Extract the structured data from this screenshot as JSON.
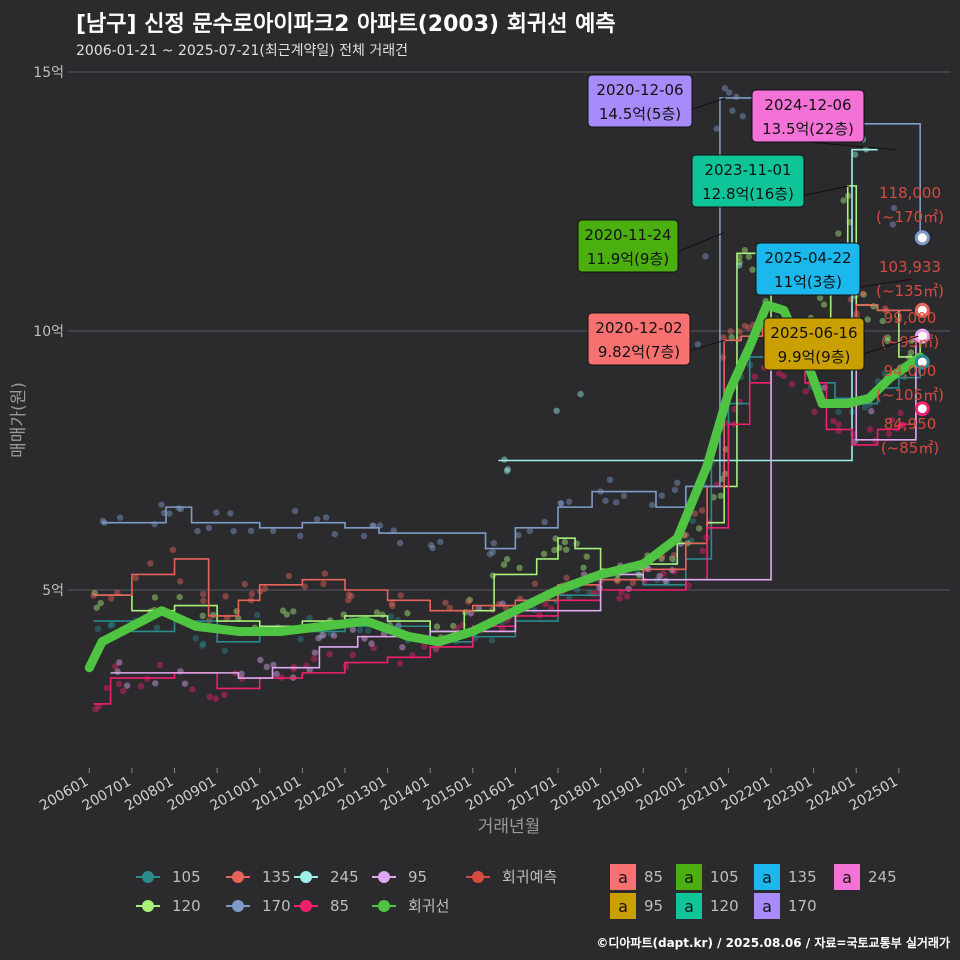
{
  "title": "[남구] 신정 문수로아이파크2 아파트(2003) 회귀선 예측",
  "subtitle": "2006-01-21 ~ 2025-07-21(최근계약일) 전체 거래건",
  "credit": "©디아파트(dapt.kr) / 2025.08.06 / 자료=국토교통부 실거래가",
  "colors": {
    "background": "#2b2b2e",
    "s105": "#2a8a8c",
    "s120": "#a8f07a",
    "s135": "#e8635a",
    "s170": "#7f9cc8",
    "s245": "#9ef0e8",
    "s85": "#f0206e",
    "s95": "#e0a8f0",
    "regression": "#4fc443",
    "forecast": "#d84a3f"
  },
  "chart_data": {
    "type": "line",
    "xlabel": "거래년월",
    "ylabel": "매매가(원)",
    "ylim": [
      0,
      15
    ],
    "y_ticks": [
      {
        "value": 5,
        "label": "5억"
      },
      {
        "value": 10,
        "label": "10억"
      },
      {
        "value": 15,
        "label": "15억"
      }
    ],
    "x_range": [
      2005.5,
      2026.2
    ],
    "x_ticks": [
      "200601",
      "200701",
      "200801",
      "200901",
      "201001",
      "201101",
      "201201",
      "201301",
      "201401",
      "201501",
      "201601",
      "201701",
      "201801",
      "201901",
      "202001",
      "202101",
      "202201",
      "202301",
      "202401",
      "202501"
    ],
    "series": [
      {
        "name": "105",
        "key": "s105",
        "points": [
          [
            2006.1,
            4.4
          ],
          [
            2007.0,
            4.2
          ],
          [
            2008.0,
            4.4
          ],
          [
            2009.0,
            4.0
          ],
          [
            2010.0,
            4.3
          ],
          [
            2011.0,
            4.2
          ],
          [
            2012.0,
            4.3
          ],
          [
            2013.0,
            4.3
          ],
          [
            2014.0,
            4.0
          ],
          [
            2015.0,
            4.1
          ],
          [
            2016.0,
            4.4
          ],
          [
            2017.0,
            4.9
          ],
          [
            2018.0,
            5.2
          ],
          [
            2019.0,
            5.1
          ],
          [
            2020.0,
            5.6
          ],
          [
            2020.6,
            7.5
          ],
          [
            2021.0,
            8.6
          ],
          [
            2021.5,
            9.5
          ],
          [
            2022.0,
            10.2
          ],
          [
            2022.6,
            9.6
          ],
          [
            2023.0,
            9.0
          ],
          [
            2023.5,
            8.7
          ],
          [
            2024.0,
            8.6
          ],
          [
            2024.5,
            8.9
          ],
          [
            2025.0,
            9.1
          ],
          [
            2025.5,
            9.4
          ]
        ]
      },
      {
        "name": "120",
        "key": "s120",
        "points": [
          [
            2006.1,
            4.9
          ],
          [
            2007.0,
            4.6
          ],
          [
            2008.0,
            4.7
          ],
          [
            2009.0,
            4.4
          ],
          [
            2010.0,
            4.3
          ],
          [
            2011.0,
            4.4
          ],
          [
            2012.0,
            4.5
          ],
          [
            2013.0,
            4.4
          ],
          [
            2014.0,
            4.2
          ],
          [
            2014.8,
            4.6
          ],
          [
            2015.5,
            5.3
          ],
          [
            2016.5,
            5.6
          ],
          [
            2017.0,
            6.0
          ],
          [
            2017.4,
            5.8
          ],
          [
            2018.0,
            5.4
          ],
          [
            2019.0,
            5.5
          ],
          [
            2019.8,
            5.9
          ],
          [
            2020.5,
            6.3
          ],
          [
            2020.9,
            7.0
          ],
          [
            2021.2,
            11.5
          ],
          [
            2021.4,
            11.5
          ],
          [
            2022.0,
            10.2
          ],
          [
            2022.6,
            9.8
          ],
          [
            2023.0,
            10.2
          ],
          [
            2023.4,
            10.8
          ],
          [
            2023.8,
            12.8
          ],
          [
            2024.0,
            10.5
          ],
          [
            2024.5,
            10.4
          ],
          [
            2025.0,
            9.5
          ],
          [
            2025.5,
            9.9
          ]
        ]
      },
      {
        "name": "135",
        "key": "s135",
        "points": [
          [
            2006.1,
            4.9
          ],
          [
            2007.0,
            5.3
          ],
          [
            2008.0,
            5.6
          ],
          [
            2008.8,
            4.5
          ],
          [
            2009.5,
            4.8
          ],
          [
            2010.0,
            5.1
          ],
          [
            2011.0,
            5.2
          ],
          [
            2012.0,
            5.0
          ],
          [
            2013.0,
            4.8
          ],
          [
            2014.0,
            4.6
          ],
          [
            2015.0,
            4.7
          ],
          [
            2016.0,
            4.8
          ],
          [
            2017.0,
            5.1
          ],
          [
            2018.0,
            5.2
          ],
          [
            2019.0,
            5.4
          ],
          [
            2020.0,
            5.9
          ],
          [
            2020.5,
            7.0
          ],
          [
            2020.9,
            9.82
          ],
          [
            2021.3,
            9.9
          ],
          [
            2021.8,
            10.2
          ],
          [
            2022.3,
            10.1
          ],
          [
            2023.0,
            9.4
          ],
          [
            2023.5,
            10.2
          ],
          [
            2024.0,
            10.5
          ],
          [
            2024.5,
            10.4
          ],
          [
            2025.3,
            10.4
          ]
        ]
      },
      {
        "name": "170",
        "key": "s170",
        "points": [
          [
            2006.3,
            6.3
          ],
          [
            2006.9,
            6.3
          ],
          [
            2007.8,
            6.6
          ],
          [
            2008.4,
            6.3
          ],
          [
            2009.0,
            6.3
          ],
          [
            2010.0,
            6.2
          ],
          [
            2011.0,
            6.3
          ],
          [
            2012.0,
            6.2
          ],
          [
            2012.8,
            6.1
          ],
          [
            2013.3,
            6.1
          ],
          [
            2015.3,
            5.8
          ],
          [
            2016.0,
            6.2
          ],
          [
            2017.0,
            6.6
          ],
          [
            2017.8,
            6.9
          ],
          [
            2018.3,
            6.9
          ],
          [
            2019.3,
            6.6
          ],
          [
            2020.0,
            7.0
          ],
          [
            2020.8,
            14.5
          ],
          [
            2021.1,
            14.5
          ],
          [
            2022.0,
            14.0
          ],
          [
            2022.3,
            14.0
          ],
          [
            2025.5,
            11.8
          ]
        ]
      },
      {
        "name": "245",
        "key": "s245",
        "points": [
          [
            2015.6,
            7.5
          ],
          [
            2015.9,
            7.5
          ],
          [
            2023.9,
            13.5
          ],
          [
            2024.5,
            13.5
          ]
        ]
      },
      {
        "name": "85",
        "key": "s85",
        "points": [
          [
            2006.1,
            2.8
          ],
          [
            2006.5,
            3.3
          ],
          [
            2007.0,
            3.3
          ],
          [
            2008.0,
            3.4
          ],
          [
            2009.0,
            3.1
          ],
          [
            2010.0,
            3.3
          ],
          [
            2011.0,
            3.4
          ],
          [
            2012.0,
            3.6
          ],
          [
            2013.0,
            3.7
          ],
          [
            2014.0,
            3.9
          ],
          [
            2015.0,
            4.3
          ],
          [
            2016.0,
            4.5
          ],
          [
            2017.0,
            4.8
          ],
          [
            2018.0,
            5.0
          ],
          [
            2019.0,
            5.0
          ],
          [
            2020.0,
            5.2
          ],
          [
            2020.5,
            6.2
          ],
          [
            2021.0,
            8.2
          ],
          [
            2021.5,
            9.0
          ],
          [
            2022.0,
            9.4
          ],
          [
            2022.8,
            9.0
          ],
          [
            2023.3,
            8.1
          ],
          [
            2023.9,
            7.8
          ],
          [
            2024.5,
            8.1
          ],
          [
            2025.0,
            8.2
          ],
          [
            2025.4,
            8.5
          ]
        ]
      },
      {
        "name": "95",
        "key": "s95",
        "points": [
          [
            2006.5,
            3.4
          ],
          [
            2006.9,
            3.4
          ],
          [
            2009.5,
            3.3
          ],
          [
            2010.3,
            3.5
          ],
          [
            2011.0,
            3.5
          ],
          [
            2011.4,
            3.9
          ],
          [
            2012.3,
            4.1
          ],
          [
            2013.0,
            4.1
          ],
          [
            2014.0,
            4.2
          ],
          [
            2016.0,
            4.6
          ],
          [
            2018.0,
            5.3
          ],
          [
            2019.0,
            5.2
          ],
          [
            2019.5,
            5.2
          ],
          [
            2022.0,
            9.7
          ],
          [
            2022.4,
            9.7
          ],
          [
            2024.0,
            7.9
          ],
          [
            2025.4,
            9.9
          ]
        ]
      }
    ],
    "regression": {
      "name": "회귀선",
      "points": [
        [
          2006.0,
          3.5
        ],
        [
          2006.3,
          4.0
        ],
        [
          2007.0,
          4.3
        ],
        [
          2007.7,
          4.6
        ],
        [
          2008.5,
          4.3
        ],
        [
          2009.5,
          4.2
        ],
        [
          2010.5,
          4.2
        ],
        [
          2011.5,
          4.3
        ],
        [
          2012.5,
          4.4
        ],
        [
          2013.5,
          4.1
        ],
        [
          2014.2,
          4.0
        ],
        [
          2015.0,
          4.2
        ],
        [
          2016.0,
          4.6
        ],
        [
          2017.0,
          5.0
        ],
        [
          2018.0,
          5.3
        ],
        [
          2019.0,
          5.5
        ],
        [
          2019.8,
          6.0
        ],
        [
          2020.5,
          7.4
        ],
        [
          2021.0,
          8.8
        ],
        [
          2021.5,
          9.7
        ],
        [
          2021.9,
          10.5
        ],
        [
          2022.3,
          10.4
        ],
        [
          2022.8,
          9.5
        ],
        [
          2023.2,
          8.6
        ],
        [
          2023.8,
          8.6
        ],
        [
          2024.3,
          8.7
        ],
        [
          2024.8,
          9.1
        ],
        [
          2025.5,
          9.5
        ]
      ]
    },
    "forecast": [
      {
        "area": "118,000",
        "area_range": "(~170㎡)",
        "value": 11.8,
        "key": "s170"
      },
      {
        "area": "103,933",
        "area_range": "(~135㎡)",
        "value": 10.4,
        "key": "s135"
      },
      {
        "area": "99,000",
        "area_range": "(~95㎡)",
        "value": 9.9,
        "key": "s95"
      },
      {
        "area": "94,000",
        "area_range": "(~105㎡)",
        "value": 9.4,
        "key": "s105"
      },
      {
        "area": "84,950",
        "area_range": "(~85㎡)",
        "value": 8.5,
        "key": "s85"
      }
    ],
    "annotations": [
      {
        "date": "2020-12-06",
        "label": "14.5억(5층)",
        "bg": "#a78bfa",
        "x": 2020.93,
        "y": 14.5
      },
      {
        "date": "2024-12-06",
        "label": "13.5억(22층)",
        "bg": "#f472d8",
        "x": 2024.93,
        "y": 13.5
      },
      {
        "date": "2023-11-01",
        "label": "12.8억(16층)",
        "bg": "#10c49a",
        "x": 2023.83,
        "y": 12.8
      },
      {
        "date": "2020-11-24",
        "label": "11.9억(9층)",
        "bg": "#4caf10",
        "x": 2020.9,
        "y": 11.9
      },
      {
        "date": "2025-04-22",
        "label": "11억(3층)",
        "bg": "#1ab8ec",
        "x": 2025.3,
        "y": 11.0
      },
      {
        "date": "2020-12-02",
        "label": "9.82억(7층)",
        "bg": "#f87171",
        "x": 2020.92,
        "y": 9.82
      },
      {
        "date": "2025-06-16",
        "label": "9.9억(9층)",
        "bg": "#c9a000",
        "x": 2025.46,
        "y": 9.9
      }
    ]
  },
  "legend": {
    "line_items": [
      {
        "label": "105",
        "key": "s105"
      },
      {
        "label": "135",
        "key": "s135"
      },
      {
        "label": "245",
        "key": "s245"
      },
      {
        "label": "95",
        "key": "s95"
      },
      {
        "label": "회귀예측",
        "key": "forecast"
      },
      {
        "label": "120",
        "key": "s120"
      },
      {
        "label": "170",
        "key": "s170"
      },
      {
        "label": "85",
        "key": "s85"
      },
      {
        "label": "회귀선",
        "key": "regression"
      }
    ],
    "box_items": [
      {
        "glyph": "a",
        "label": "85",
        "bg": "#f87171"
      },
      {
        "glyph": "a",
        "label": "105",
        "bg": "#4caf10"
      },
      {
        "glyph": "a",
        "label": "135",
        "bg": "#1ab8ec"
      },
      {
        "glyph": "a",
        "label": "245",
        "bg": "#f472d8"
      },
      {
        "glyph": "a",
        "label": "95",
        "bg": "#c9a000"
      },
      {
        "glyph": "a",
        "label": "120",
        "bg": "#10c49a"
      },
      {
        "glyph": "a",
        "label": "170",
        "bg": "#a78bfa"
      }
    ]
  }
}
